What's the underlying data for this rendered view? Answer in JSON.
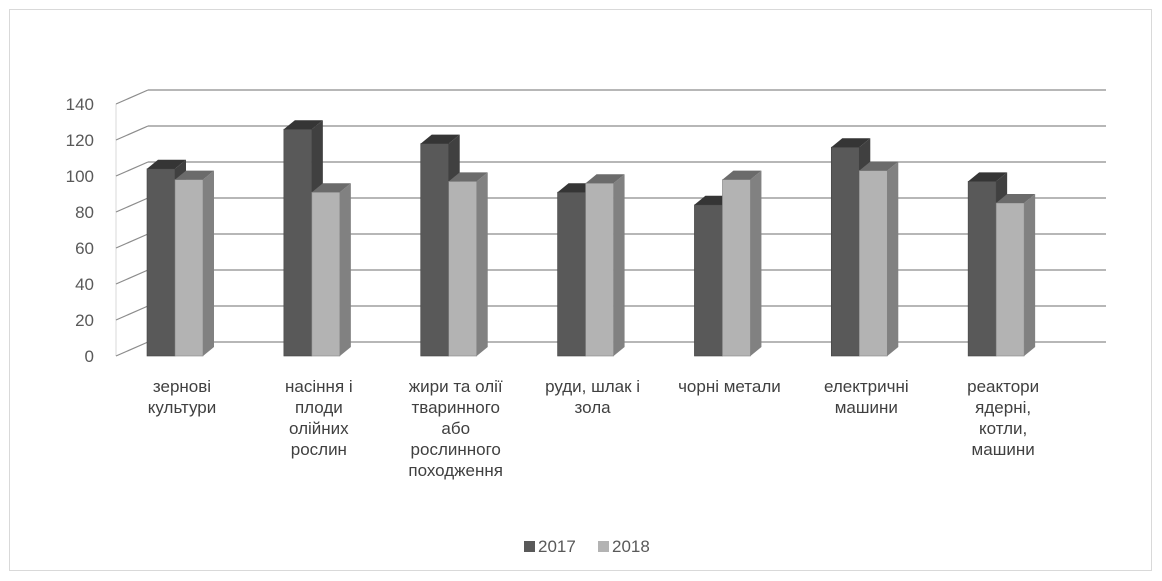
{
  "chart_data": {
    "type": "bar",
    "categories": [
      [
        "зернові",
        "культури"
      ],
      [
        "насіння і",
        "плоди",
        "олійних",
        "рослин"
      ],
      [
        "жири та олії",
        "тваринного",
        "або",
        "рослинного",
        "походження"
      ],
      [
        "руди, шлак і",
        "зола"
      ],
      [
        "чорні метали"
      ],
      [
        "електричні",
        "машини"
      ],
      [
        "реактори",
        "ядерні,",
        "котли,",
        "машини"
      ]
    ],
    "series": [
      {
        "name": "2017",
        "values": [
          104,
          126,
          118,
          91,
          84,
          116,
          97
        ],
        "color": "#595959"
      },
      {
        "name": "2018",
        "values": [
          98,
          91,
          97,
          96,
          98,
          103,
          85
        ],
        "color": "#b3b3b3"
      }
    ],
    "yticks": [
      "0",
      "20",
      "40",
      "60",
      "80",
      "100",
      "120",
      "140"
    ],
    "ylim": [
      0,
      140
    ],
    "grid": true,
    "legend": "bottom"
  }
}
